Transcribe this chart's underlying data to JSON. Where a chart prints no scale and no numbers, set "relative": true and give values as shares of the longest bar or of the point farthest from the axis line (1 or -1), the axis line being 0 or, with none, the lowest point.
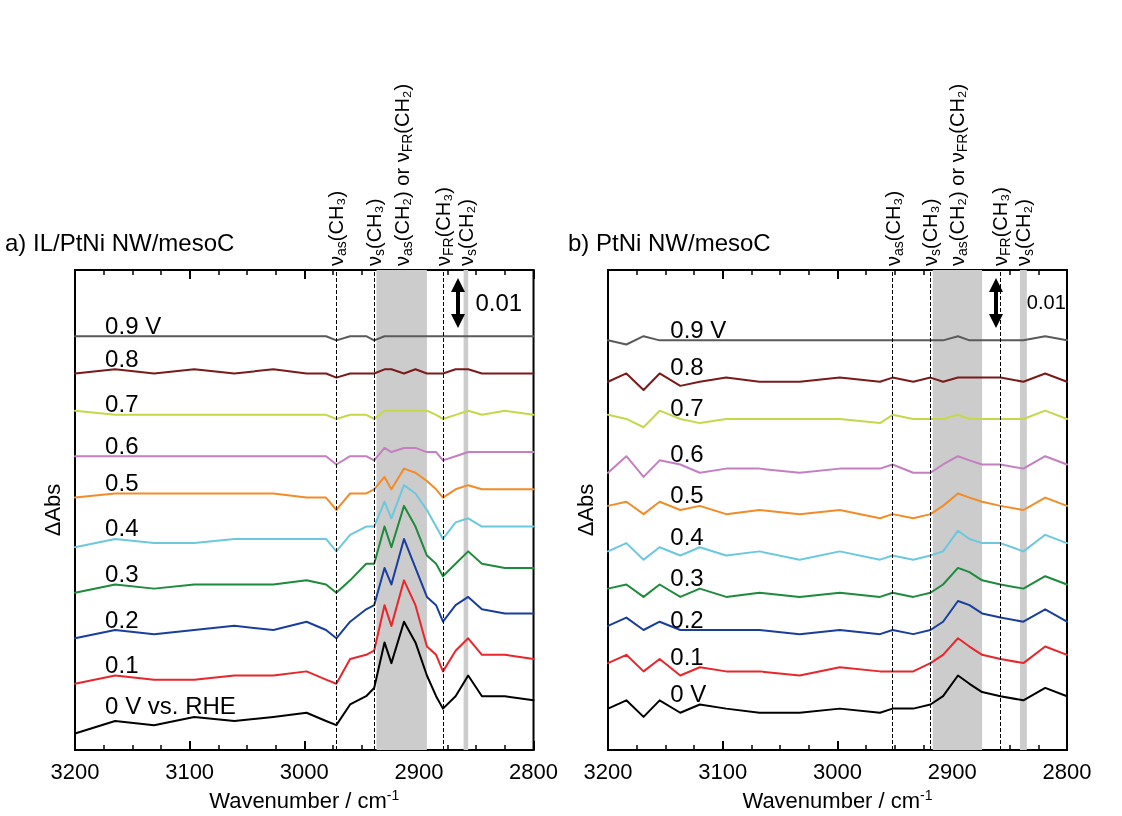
{
  "chart_data": [
    {
      "type": "line",
      "title": "a) IL/PtNi NW/mesoC",
      "xlabel": "Wavenumber / cm$^{-1}$",
      "ylabel": "ΔAbs",
      "relative": true,
      "legend": false,
      "grid": false,
      "marker": "none",
      "line_style": "solid",
      "xlim": [
        3200,
        2800
      ],
      "xticks": [
        3200,
        3100,
        3000,
        2900,
        2800
      ],
      "x": [
        3200,
        3165,
        3131,
        3096,
        3061,
        3027,
        2998,
        2981,
        2972,
        2960,
        2946,
        2939,
        2930,
        2924,
        2913,
        2903,
        2893,
        2885,
        2879,
        2868,
        2857,
        2845,
        2825,
        2800
      ],
      "series": [
        {
          "name": "0.9 V",
          "color": "#5a5a5a",
          "values": [
            1.0,
            1.0,
            1.0,
            1.0,
            1.0,
            1.0,
            1.0,
            1.0,
            0.99,
            1.0,
            1.0,
            0.99,
            1.0,
            1.0,
            1.0,
            1.0,
            1.0,
            1.0,
            1.0,
            1.0,
            1.0,
            1.0,
            1.0,
            1.0
          ]
        },
        {
          "name": "0.8",
          "color": "#7a1a1a",
          "values": [
            0.91,
            0.92,
            0.91,
            0.92,
            0.91,
            0.92,
            0.91,
            0.91,
            0.9,
            0.91,
            0.91,
            0.91,
            0.92,
            0.92,
            0.91,
            0.92,
            0.91,
            0.91,
            0.91,
            0.92,
            0.92,
            0.91,
            0.91,
            0.91
          ]
        },
        {
          "name": "0.7",
          "color": "#c5d84a",
          "values": [
            0.82,
            0.81,
            0.81,
            0.81,
            0.81,
            0.81,
            0.81,
            0.81,
            0.8,
            0.81,
            0.81,
            0.8,
            0.82,
            0.82,
            0.82,
            0.82,
            0.82,
            0.81,
            0.8,
            0.81,
            0.82,
            0.81,
            0.82,
            0.81
          ]
        },
        {
          "name": "0.6",
          "color": "#c47fc0",
          "values": [
            0.71,
            0.71,
            0.71,
            0.71,
            0.71,
            0.71,
            0.71,
            0.71,
            0.69,
            0.71,
            0.71,
            0.7,
            0.73,
            0.72,
            0.73,
            0.73,
            0.72,
            0.72,
            0.7,
            0.71,
            0.72,
            0.72,
            0.72,
            0.72
          ]
        },
        {
          "name": "0.5",
          "color": "#f28c28",
          "values": [
            0.61,
            0.62,
            0.62,
            0.62,
            0.62,
            0.62,
            0.61,
            0.61,
            0.58,
            0.62,
            0.62,
            0.63,
            0.66,
            0.63,
            0.68,
            0.67,
            0.65,
            0.63,
            0.61,
            0.63,
            0.64,
            0.63,
            0.63,
            0.63
          ]
        },
        {
          "name": "0.4",
          "color": "#6cc8dd",
          "values": [
            0.49,
            0.51,
            0.5,
            0.5,
            0.51,
            0.51,
            0.51,
            0.51,
            0.48,
            0.52,
            0.54,
            0.54,
            0.6,
            0.56,
            0.64,
            0.62,
            0.58,
            0.54,
            0.51,
            0.55,
            0.56,
            0.54,
            0.54,
            0.54
          ]
        },
        {
          "name": "0.3",
          "color": "#1e8a3c",
          "values": [
            0.38,
            0.4,
            0.39,
            0.4,
            0.4,
            0.4,
            0.41,
            0.4,
            0.38,
            0.41,
            0.45,
            0.45,
            0.54,
            0.49,
            0.59,
            0.54,
            0.47,
            0.45,
            0.42,
            0.45,
            0.48,
            0.45,
            0.44,
            0.44
          ]
        },
        {
          "name": "0.2",
          "color": "#1a3e9c",
          "values": [
            0.27,
            0.29,
            0.28,
            0.29,
            0.3,
            0.29,
            0.31,
            0.29,
            0.27,
            0.31,
            0.34,
            0.35,
            0.44,
            0.4,
            0.51,
            0.44,
            0.37,
            0.35,
            0.31,
            0.35,
            0.37,
            0.34,
            0.33,
            0.33
          ]
        },
        {
          "name": "0.1",
          "color": "#e8262b",
          "values": [
            0.16,
            0.18,
            0.17,
            0.17,
            0.18,
            0.18,
            0.19,
            0.17,
            0.16,
            0.22,
            0.23,
            0.24,
            0.35,
            0.3,
            0.41,
            0.35,
            0.25,
            0.23,
            0.19,
            0.24,
            0.27,
            0.23,
            0.23,
            0.22
          ]
        },
        {
          "name": "0 V vs. RHE",
          "color": "#000000",
          "values": [
            0.04,
            0.07,
            0.06,
            0.08,
            0.07,
            0.08,
            0.09,
            0.07,
            0.06,
            0.11,
            0.13,
            0.15,
            0.26,
            0.21,
            0.31,
            0.26,
            0.18,
            0.13,
            0.1,
            0.13,
            0.18,
            0.13,
            0.13,
            0.12
          ]
        }
      ],
      "ref_lines": [
        {
          "axis": "x",
          "value": 2972,
          "label": "ν$_{as}$(CH₃)",
          "color": "#000000",
          "line_style": "dashed"
        },
        {
          "axis": "x",
          "value": 2939,
          "label": "ν$_{s}$(CH₃)",
          "color": "#000000",
          "line_style": "dashed"
        },
        {
          "axis": "x",
          "value": 2879,
          "label": "ν$_{FR}$(CH₃)",
          "color": "#000000",
          "line_style": "dashed"
        }
      ],
      "bands": [
        {
          "axis": "x",
          "from": 2937,
          "to": 2893,
          "label": "ν$_{as}$(CH₂) or ν$_{FR}$(CH₂)",
          "color": "#cccccc"
        },
        {
          "axis": "x",
          "from": 2861,
          "to": 2857,
          "label": "ν$_{s}$(CH₂)",
          "color": "#cccccc"
        }
      ],
      "annotations": [
        "0.01"
      ]
    },
    {
      "type": "line",
      "title": "b) PtNi NW/mesoC",
      "xlabel": "Wavenumber / cm$^{-1}$",
      "ylabel": "ΔAbs",
      "relative": true,
      "legend": false,
      "grid": false,
      "marker": "none",
      "line_style": "solid",
      "xlim": [
        3200,
        2800
      ],
      "xticks": [
        3200,
        3100,
        3000,
        2900,
        2800
      ],
      "x": [
        3200,
        3184,
        3169,
        3155,
        3137,
        3120,
        3097,
        3068,
        3033,
        2998,
        2963,
        2952,
        2934,
        2919,
        2908,
        2895,
        2885,
        2874,
        2858,
        2838,
        2819,
        2800
      ],
      "series": [
        {
          "name": "0.9 V",
          "color": "#5a5a5a",
          "values": [
            0.99,
            0.98,
            1.0,
            0.99,
            0.99,
            0.99,
            0.99,
            0.99,
            0.99,
            0.99,
            0.99,
            0.99,
            0.99,
            0.99,
            0.99,
            1.0,
            0.99,
            0.99,
            0.99,
            0.99,
            1.0,
            0.99
          ]
        },
        {
          "name": "0.8",
          "color": "#7a1a1a",
          "values": [
            0.89,
            0.91,
            0.87,
            0.91,
            0.88,
            0.89,
            0.9,
            0.89,
            0.89,
            0.9,
            0.89,
            0.9,
            0.89,
            0.9,
            0.89,
            0.9,
            0.9,
            0.9,
            0.9,
            0.89,
            0.91,
            0.89
          ]
        },
        {
          "name": "0.7",
          "color": "#c5d84a",
          "values": [
            0.81,
            0.8,
            0.78,
            0.82,
            0.8,
            0.79,
            0.8,
            0.8,
            0.8,
            0.8,
            0.79,
            0.81,
            0.8,
            0.8,
            0.8,
            0.81,
            0.8,
            0.8,
            0.8,
            0.8,
            0.82,
            0.8
          ]
        },
        {
          "name": "0.6",
          "color": "#c47fc0",
          "values": [
            0.67,
            0.71,
            0.66,
            0.7,
            0.69,
            0.67,
            0.68,
            0.68,
            0.67,
            0.68,
            0.68,
            0.69,
            0.67,
            0.67,
            0.69,
            0.71,
            0.7,
            0.69,
            0.69,
            0.68,
            0.71,
            0.69
          ]
        },
        {
          "name": "0.5",
          "color": "#f28c28",
          "values": [
            0.59,
            0.6,
            0.57,
            0.6,
            0.58,
            0.59,
            0.57,
            0.58,
            0.57,
            0.58,
            0.56,
            0.57,
            0.56,
            0.57,
            0.59,
            0.62,
            0.61,
            0.6,
            0.59,
            0.58,
            0.61,
            0.59
          ]
        },
        {
          "name": "0.4",
          "color": "#6cc8dd",
          "values": [
            0.48,
            0.5,
            0.46,
            0.49,
            0.47,
            0.49,
            0.47,
            0.48,
            0.46,
            0.48,
            0.46,
            0.47,
            0.46,
            0.47,
            0.48,
            0.53,
            0.51,
            0.5,
            0.5,
            0.48,
            0.52,
            0.5
          ]
        },
        {
          "name": "0.3",
          "color": "#1e8a3c",
          "values": [
            0.39,
            0.4,
            0.37,
            0.4,
            0.37,
            0.39,
            0.37,
            0.38,
            0.37,
            0.38,
            0.37,
            0.38,
            0.37,
            0.38,
            0.4,
            0.44,
            0.43,
            0.41,
            0.4,
            0.39,
            0.42,
            0.4
          ]
        },
        {
          "name": "0.2",
          "color": "#1a3e9c",
          "values": [
            0.3,
            0.32,
            0.29,
            0.31,
            0.29,
            0.29,
            0.29,
            0.29,
            0.28,
            0.29,
            0.28,
            0.29,
            0.28,
            0.29,
            0.31,
            0.36,
            0.35,
            0.33,
            0.32,
            0.31,
            0.34,
            0.31
          ]
        },
        {
          "name": "0.1",
          "color": "#e8262b",
          "values": [
            0.21,
            0.23,
            0.19,
            0.22,
            0.18,
            0.2,
            0.19,
            0.19,
            0.18,
            0.2,
            0.19,
            0.19,
            0.19,
            0.21,
            0.23,
            0.27,
            0.25,
            0.23,
            0.22,
            0.21,
            0.25,
            0.23
          ]
        },
        {
          "name": "0 V",
          "color": "#000000",
          "values": [
            0.1,
            0.12,
            0.08,
            0.12,
            0.09,
            0.11,
            0.1,
            0.09,
            0.09,
            0.1,
            0.09,
            0.1,
            0.1,
            0.11,
            0.13,
            0.18,
            0.16,
            0.14,
            0.13,
            0.12,
            0.15,
            0.13
          ]
        }
      ],
      "ref_lines": [
        {
          "axis": "x",
          "value": 2952,
          "label": "ν$_{as}$(CH₃)",
          "color": "#000000",
          "line_style": "dashed"
        },
        {
          "axis": "x",
          "value": 2919,
          "label": "ν$_{s}$(CH₃)",
          "color": "#000000",
          "line_style": "dashed"
        },
        {
          "axis": "x",
          "value": 2858,
          "label": "ν$_{FR}$(CH₃)",
          "color": "#000000",
          "line_style": "dashed"
        }
      ],
      "bands": [
        {
          "axis": "x",
          "from": 2917,
          "to": 2874,
          "label": "ν$_{as}$(CH₂) or ν$_{FR}$(CH₂)",
          "color": "#cccccc"
        },
        {
          "axis": "x",
          "from": 2841,
          "to": 2835,
          "label": "ν$_{s}$(CH₂)",
          "color": "#cccccc"
        }
      ],
      "annotations": [
        "0.01"
      ]
    }
  ]
}
